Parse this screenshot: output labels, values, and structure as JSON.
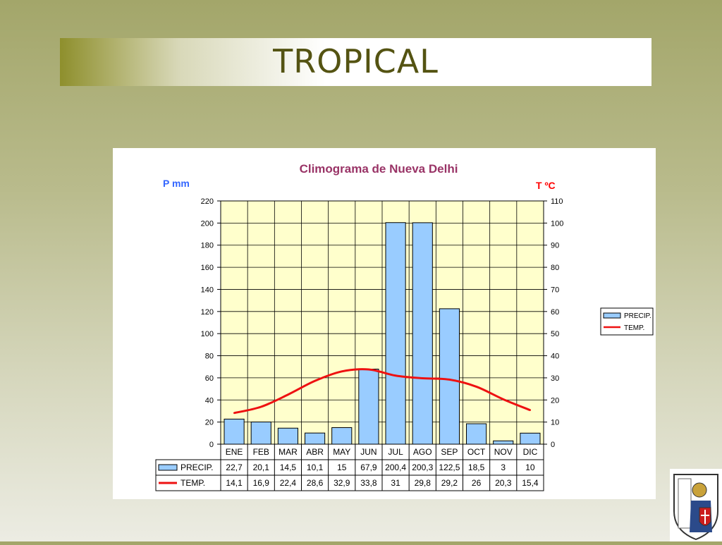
{
  "slide": {
    "title": "TROPICAL"
  },
  "chart_data": {
    "type": "bar",
    "title": "Climograma de Nueva Delhi",
    "ylabel": "P mm",
    "y2label": "T ºC",
    "ylim": [
      0,
      220
    ],
    "y2lim": [
      0,
      110
    ],
    "yticks": [
      "220",
      "200",
      "180",
      "160",
      "140",
      "120",
      "100",
      "80",
      "60",
      "40",
      "20",
      "0"
    ],
    "y2ticks": [
      "110",
      "100",
      "90",
      "80",
      "70",
      "60",
      "50",
      "40",
      "30",
      "20",
      "10",
      "0"
    ],
    "grid": true,
    "legend_position": "right",
    "categories": [
      "ENE",
      "FEB",
      "MAR",
      "ABR",
      "MAY",
      "JUN",
      "JUL",
      "AGO",
      "SEP",
      "OCT",
      "NOV",
      "DIC"
    ],
    "series": [
      {
        "name": "PRECIP.",
        "type": "bar",
        "axis": "left",
        "color": "#99ccff",
        "values": [
          22.7,
          20.1,
          14.5,
          10.1,
          15,
          67.9,
          200.4,
          200.3,
          122.5,
          18.5,
          3,
          10
        ],
        "labels": [
          "22,7",
          "20,1",
          "14,5",
          "10,1",
          "15",
          "67,9",
          "200,4",
          "200,3",
          "122,5",
          "18,5",
          "3",
          "10"
        ]
      },
      {
        "name": "TEMP.",
        "type": "line",
        "axis": "right",
        "color": "#ee1111",
        "values": [
          14.1,
          16.9,
          22.4,
          28.6,
          32.9,
          33.8,
          31,
          29.8,
          29.2,
          26,
          20.3,
          15.4
        ],
        "labels": [
          "14,1",
          "16,9",
          "22,4",
          "28,6",
          "32,9",
          "33,8",
          "31",
          "29,8",
          "29,2",
          "26",
          "20,3",
          "15,4"
        ]
      }
    ],
    "colors": {
      "plot_background": "#ffffcc",
      "title": "#993366",
      "left_axis_label": "#3366ff",
      "right_axis_label": "#ff0000"
    }
  },
  "logo": {
    "icon": "crest-icon"
  }
}
